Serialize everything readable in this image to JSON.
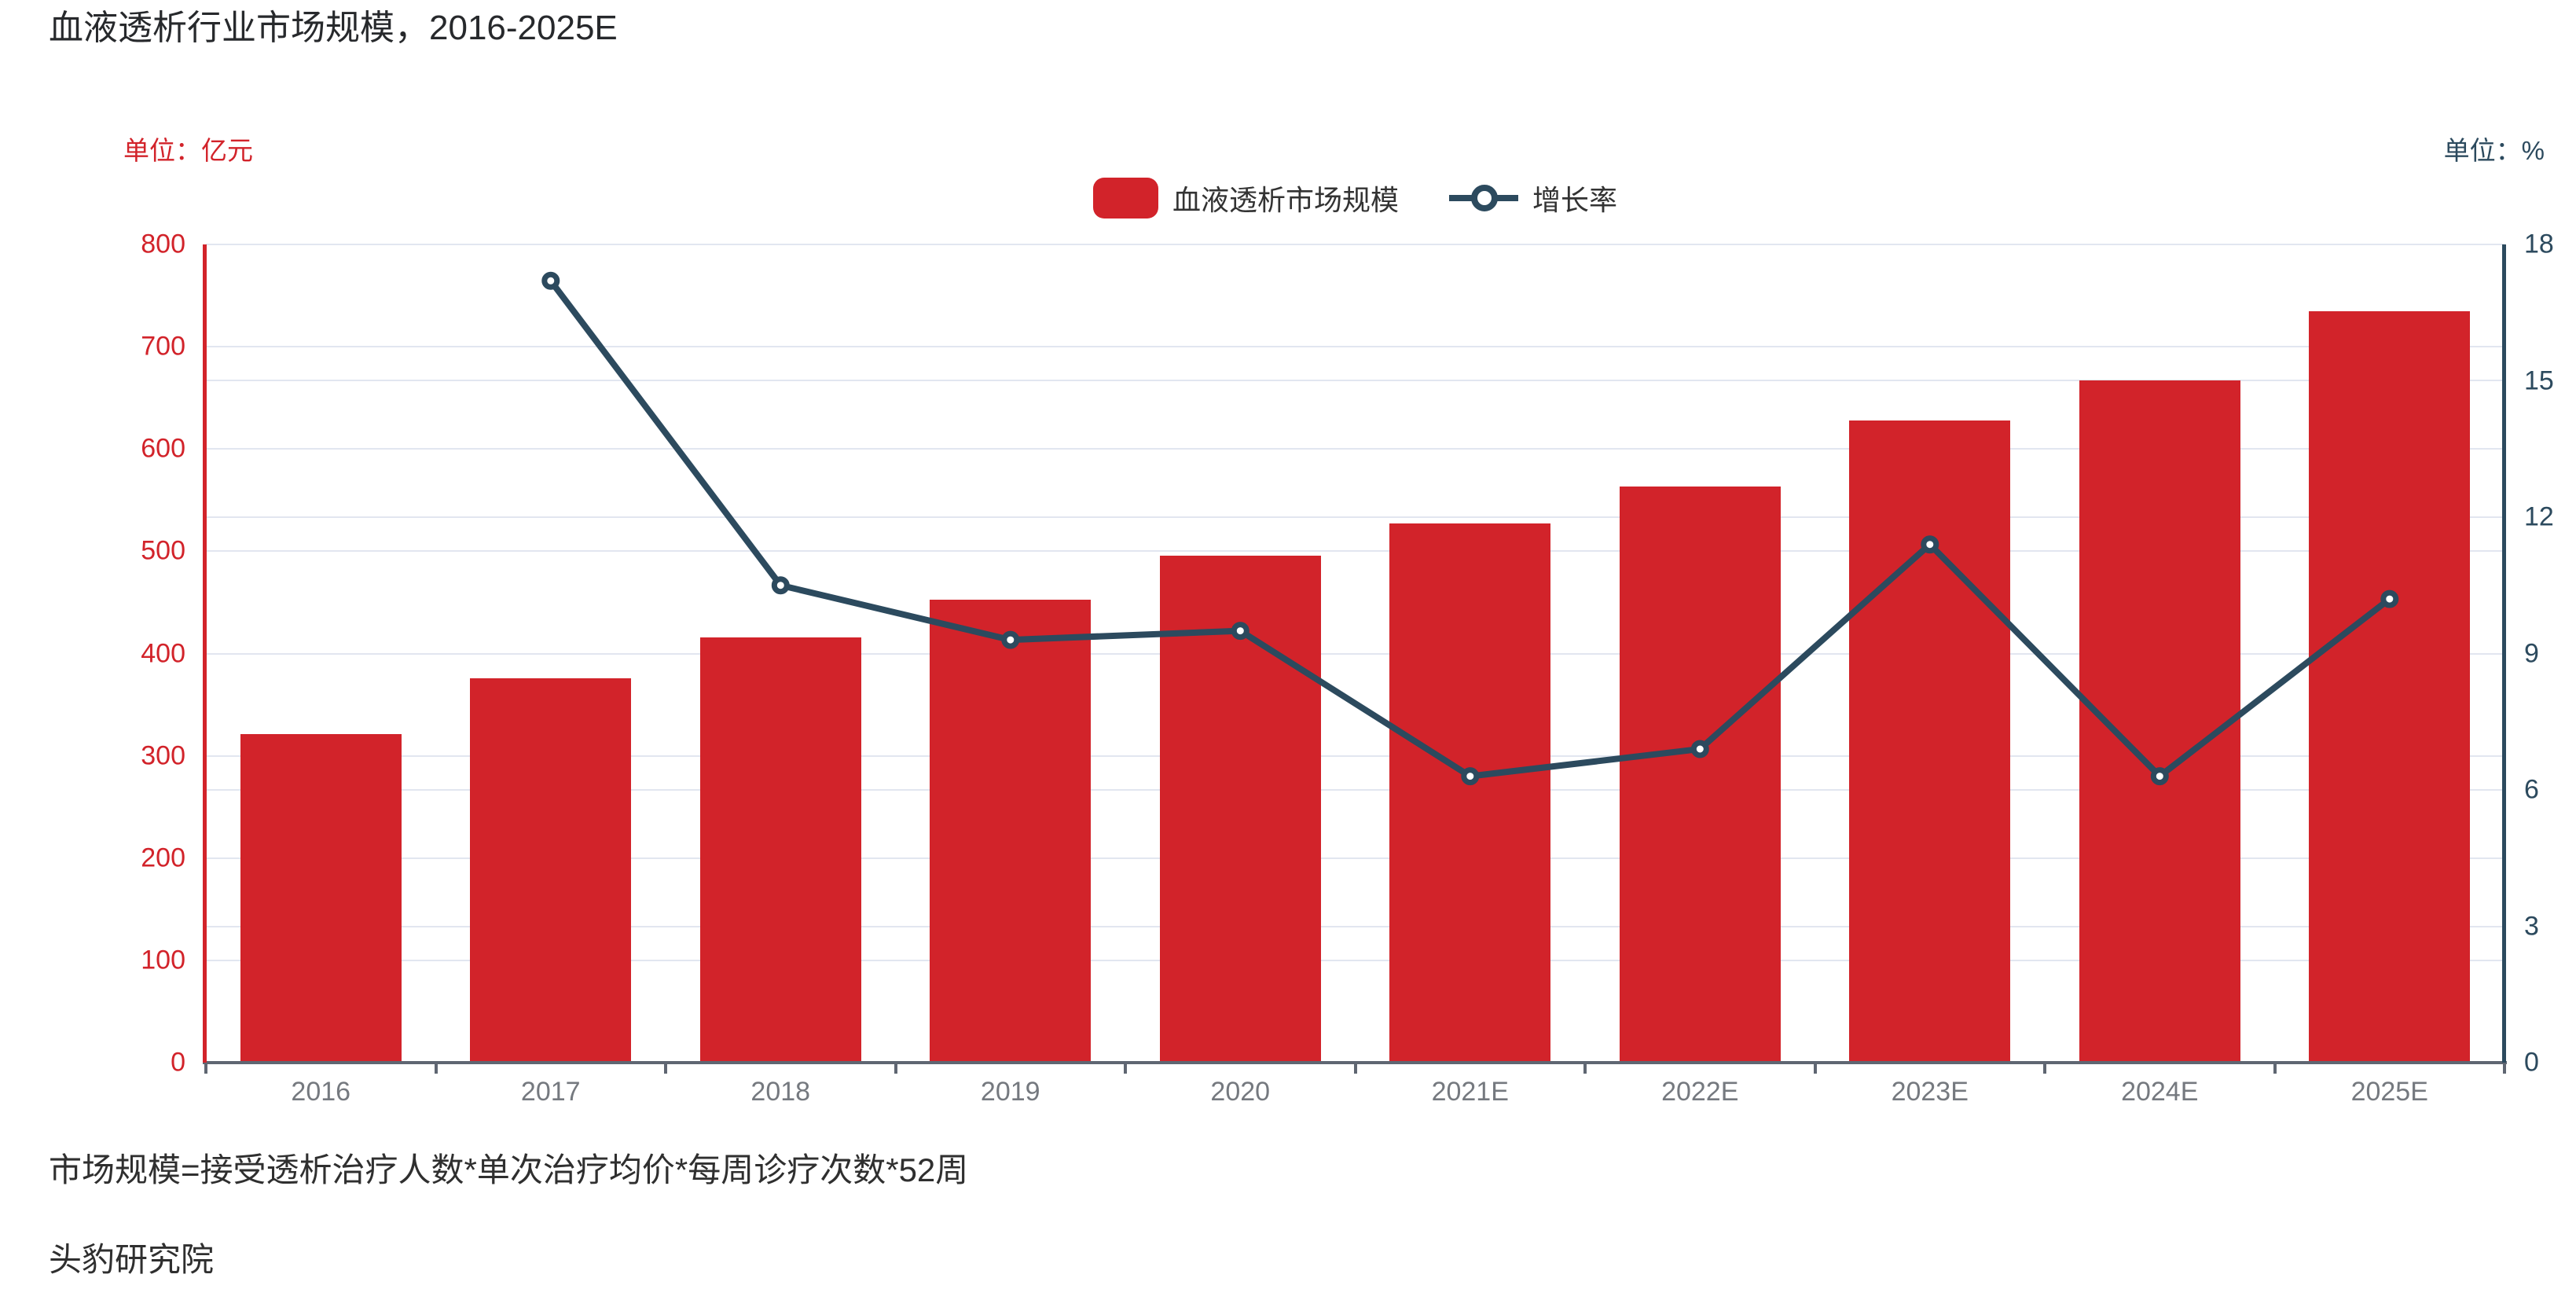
{
  "title": "血液透析行业市场规模，2016-2025E",
  "unit_left": "单位：亿元",
  "unit_right": "单位：%",
  "legend": {
    "bar_label": "血液透析市场规模",
    "line_label": "增长率"
  },
  "footnote": "市场规模=接受透析治疗人数*单次治疗均价*每周诊疗次数*52周",
  "source": "头豹研究院",
  "colors": {
    "bar": "#d2232a",
    "line": "#2c4a5e",
    "grid": "#e2e6f0",
    "axis_left": "#d2232a",
    "axis_right": "#2c4a5e",
    "axis_x": "#5f6672",
    "label_x": "#75797f",
    "label_left": "#d2232a",
    "label_right": "#2c4a5e",
    "legend_text": "#333333",
    "title": "#27292c",
    "text": "#2f2f2f"
  },
  "chart_data": {
    "type": "bar",
    "combo": "bar+line",
    "categories": [
      "2016",
      "2017",
      "2018",
      "2019",
      "2020",
      "2021E",
      "2022E",
      "2023E",
      "2024E",
      "2025E"
    ],
    "series": [
      {
        "name": "血液透析市场规模",
        "type": "bar",
        "axis": "left",
        "values": [
          321,
          376,
          416,
          453,
          496,
          527,
          563,
          628,
          667,
          735
        ]
      },
      {
        "name": "增长率",
        "type": "line",
        "axis": "right",
        "values": [
          null,
          17.2,
          10.5,
          9.3,
          9.5,
          6.3,
          6.9,
          11.4,
          6.3,
          10.2
        ]
      }
    ],
    "title": "血液透析行业市场规模，2016-2025E",
    "xlabel": "",
    "ylabel_left": "单位：亿元",
    "ylabel_right": "单位：%",
    "left_axis": {
      "min": 0,
      "max": 800,
      "ticks": [
        0,
        100,
        200,
        300,
        400,
        500,
        600,
        700,
        800
      ]
    },
    "right_axis": {
      "min": 0,
      "max": 18,
      "ticks": [
        0,
        3,
        6,
        9,
        12,
        15,
        18
      ]
    },
    "grid": true,
    "legend_position": "top-center"
  }
}
